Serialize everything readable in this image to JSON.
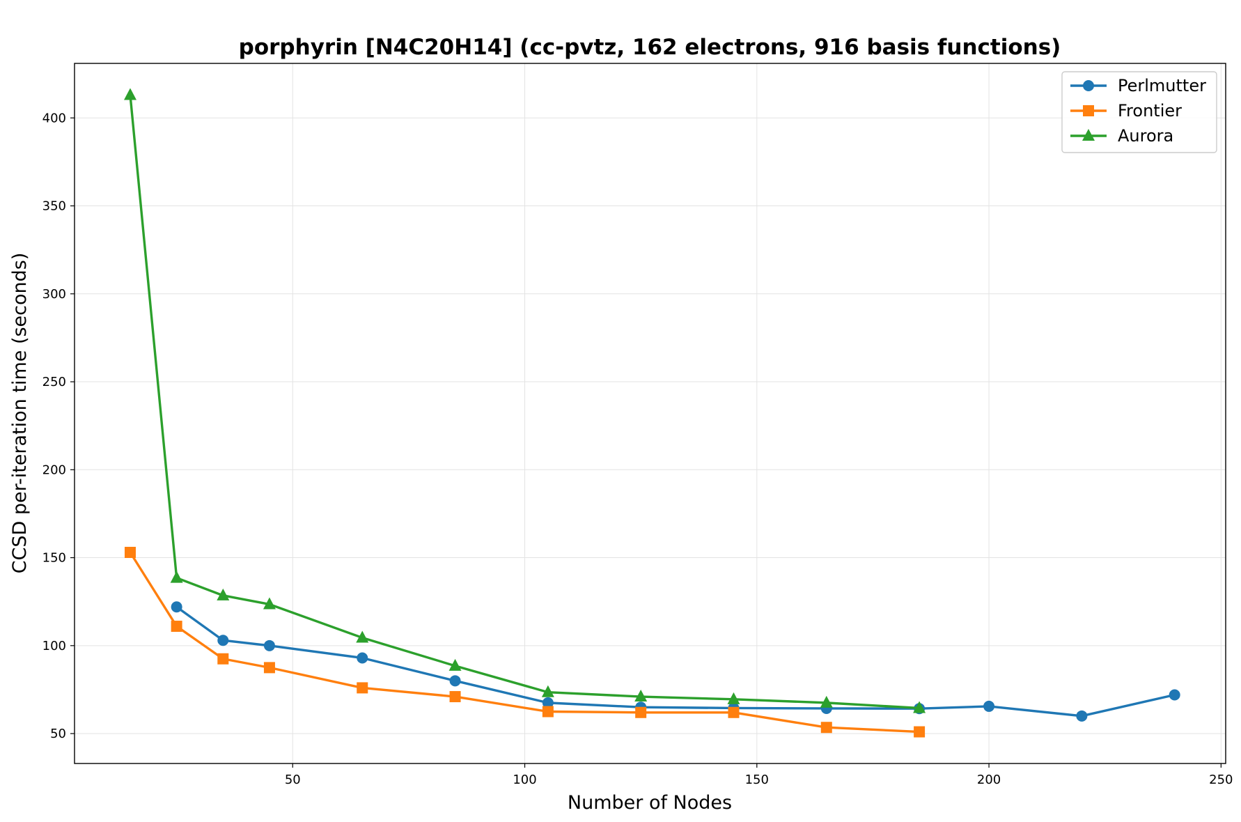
{
  "chart_data": {
    "type": "line",
    "title": "porphyrin [N4C20H14] (cc-pvtz, 162 electrons, 916 basis functions)",
    "xlabel": "Number of Nodes",
    "ylabel": "CCSD per-iteration time (seconds)",
    "xlim": [
      3,
      251
    ],
    "ylim": [
      33,
      431
    ],
    "xticks": [
      50,
      100,
      150,
      200,
      250
    ],
    "yticks": [
      50,
      100,
      150,
      200,
      250,
      300,
      350,
      400
    ],
    "grid": true,
    "legend_position": "top-right",
    "series": [
      {
        "name": "Perlmutter",
        "color": "#1f77b4",
        "marker": "circle",
        "x": [
          25,
          35,
          45,
          65,
          85,
          105,
          125,
          145,
          165,
          185,
          200,
          220,
          240
        ],
        "y": [
          122,
          103,
          100,
          93,
          80,
          67.5,
          65,
          64.5,
          64.3,
          64.2,
          65.5,
          60,
          72
        ]
      },
      {
        "name": "Frontier",
        "color": "#ff7f0e",
        "marker": "square",
        "x": [
          15,
          25,
          35,
          45,
          65,
          85,
          105,
          125,
          145,
          165,
          185
        ],
        "y": [
          153,
          111,
          92.5,
          87.5,
          76,
          71,
          62.5,
          62,
          62,
          53.5,
          51
        ]
      },
      {
        "name": "Aurora",
        "color": "#2ca02c",
        "marker": "triangle",
        "x": [
          15,
          25,
          35,
          45,
          65,
          85,
          105,
          125,
          145,
          165,
          185
        ],
        "y": [
          413,
          138.5,
          128.5,
          123.5,
          104.5,
          88.5,
          73.5,
          71,
          69.5,
          67.5,
          64.5
        ]
      }
    ]
  }
}
